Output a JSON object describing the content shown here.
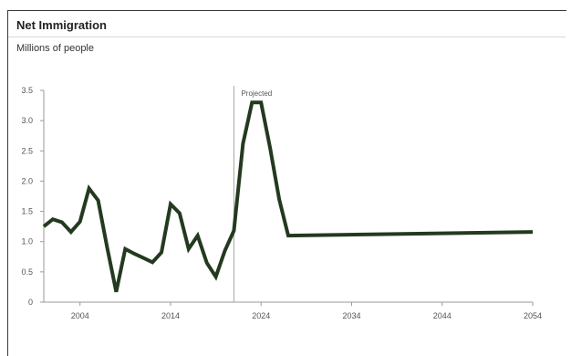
{
  "chart_data": {
    "type": "line",
    "title": "Net Immigration",
    "subtitle": "Millions of people",
    "xlabel": "",
    "ylabel": "Millions of people",
    "xlim": [
      2000,
      2054
    ],
    "ylim": [
      0,
      3.5
    ],
    "x_ticks": [
      2004,
      2014,
      2024,
      2034,
      2044,
      2054
    ],
    "y_ticks": [
      0,
      0.5,
      1.0,
      1.5,
      2.0,
      2.5,
      3.0,
      3.5
    ],
    "y_tick_labels": [
      "0",
      "0.5",
      "1.0",
      "1.5",
      "2.0",
      "2.5",
      "3.0",
      "3.5"
    ],
    "grid": false,
    "annotations": [
      {
        "text": "Projected",
        "x": 2021
      }
    ],
    "series": [
      {
        "color": "#233a1f",
        "x": [
          2000,
          2001,
          2002,
          2003,
          2004,
          2005,
          2006,
          2007,
          2008,
          2009,
          2010,
          2011,
          2012,
          2013,
          2014,
          2015,
          2016,
          2017,
          2018,
          2019,
          2020,
          2021,
          2022,
          2023,
          2024,
          2025,
          2026,
          2027,
          2054
        ],
        "y": [
          1.25,
          1.37,
          1.32,
          1.16,
          1.33,
          1.88,
          1.68,
          0.9,
          0.17,
          0.88,
          0.8,
          0.73,
          0.66,
          0.82,
          1.62,
          1.47,
          0.88,
          1.1,
          0.65,
          0.42,
          0.85,
          1.18,
          2.62,
          3.3,
          3.3,
          2.55,
          1.7,
          1.1,
          1.16
        ]
      }
    ]
  }
}
